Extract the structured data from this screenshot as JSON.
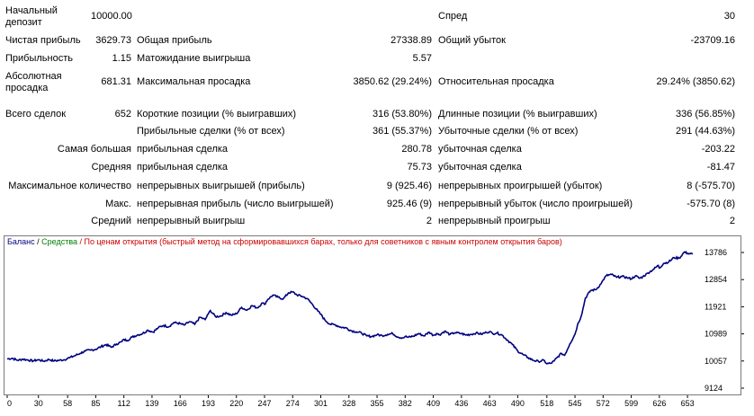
{
  "report": {
    "initial_deposit": {
      "label": "Начальный депозит",
      "value": "10000.00"
    },
    "spread": {
      "label": "Спред",
      "value": "30"
    },
    "net_profit": {
      "label": "Чистая прибыль",
      "value": "3629.73"
    },
    "gross_profit": {
      "label": "Общая прибыль",
      "value": "27338.89"
    },
    "gross_loss": {
      "label": "Общий убыток",
      "value": "-23709.16"
    },
    "profit_factor": {
      "label": "Прибыльность",
      "value": "1.15"
    },
    "expected_payoff": {
      "label": "Матожидание выигрыша",
      "value": "5.57"
    },
    "absolute_drawdown": {
      "label": "Абсолютная просадка",
      "value": "681.31"
    },
    "maximal_drawdown": {
      "label": "Максимальная просадка",
      "value": "3850.62 (29.24%)"
    },
    "relative_drawdown": {
      "label": "Относительная просадка",
      "value": "29.24% (3850.62)"
    },
    "total_trades": {
      "label": "Всего сделок",
      "value": "652"
    },
    "short_positions": {
      "label": "Короткие позиции (% выигравших)",
      "value": "316 (53.80%)"
    },
    "long_positions": {
      "label": "Длинные позиции (% выигравших)",
      "value": "336 (56.85%)"
    },
    "profit_trades": {
      "label": "Прибыльные сделки (% от всех)",
      "value": "361 (55.37%)"
    },
    "loss_trades": {
      "label": "Убыточные сделки (% от всех)",
      "value": "291 (44.63%)"
    },
    "largest": {
      "label": "Самая большая",
      "profit_label": "прибыльная сделка",
      "profit_value": "280.78",
      "loss_label": "убыточная сделка",
      "loss_value": "-203.22"
    },
    "average": {
      "label": "Средняя",
      "profit_label": "прибыльная сделка",
      "profit_value": "75.73",
      "loss_label": "убыточная сделка",
      "loss_value": "-81.47"
    },
    "maximum_consecutive": {
      "label": "Максимальное количество",
      "wins_label": "непрерывных выигрышей (прибыль)",
      "wins_value": "9 (925.46)",
      "losses_label": "непрерывных проигрышей (убыток)",
      "losses_value": "8 (-575.70)"
    },
    "maximal_consecutive": {
      "label": "Макс.",
      "profit_label": "непрерывная прибыль (число выигрышей)",
      "profit_value": "925.46 (9)",
      "loss_label": "непрерывный убыток (число проигрышей)",
      "loss_value": "-575.70 (8)"
    },
    "average_consecutive": {
      "label": "Средний",
      "wins_label": "непрерывный выигрыш",
      "wins_value": "2",
      "losses_label": "непрерывный проигрыш",
      "losses_value": "2"
    }
  },
  "chart_legend": {
    "balance": "Баланс",
    "separator": " / ",
    "equity": "Средства",
    "method": " / По ценам открытия (быстрый метод на сформировавшихся барах, только для советников с явным контролем открытия баров)"
  },
  "colors": {
    "balance": "#000080",
    "equity": "#008000",
    "method": "#cc0000"
  },
  "chart_data": {
    "type": "line",
    "series": [
      {
        "name": "Баланс",
        "x": [
          0,
          5,
          10,
          15,
          20,
          25,
          30,
          35,
          40,
          45,
          50,
          55,
          58,
          60,
          65,
          70,
          75,
          80,
          85,
          90,
          95,
          100,
          105,
          110,
          112,
          115,
          120,
          125,
          130,
          135,
          140,
          145,
          150,
          155,
          160,
          166,
          170,
          175,
          180,
          185,
          190,
          193,
          195,
          200,
          205,
          210,
          215,
          220,
          225,
          230,
          235,
          240,
          245,
          247,
          250,
          255,
          260,
          265,
          270,
          274,
          278,
          283,
          288,
          293,
          298,
          301,
          305,
          310,
          315,
          320,
          325,
          330,
          335,
          340,
          345,
          350,
          355,
          360,
          365,
          370,
          375,
          380,
          382,
          385,
          390,
          395,
          400,
          405,
          409,
          412,
          415,
          420,
          425,
          430,
          436,
          440,
          445,
          450,
          455,
          460,
          463,
          466,
          470,
          475,
          480,
          485,
          490,
          495,
          500,
          505,
          510,
          515,
          518,
          522,
          525,
          528,
          532,
          535,
          540,
          545,
          548,
          551,
          555,
          560,
          565,
          570,
          572,
          575,
          580,
          585,
          590,
          595,
          599,
          603,
          607,
          610,
          615,
          620,
          625,
          626,
          630,
          635,
          640,
          645,
          650,
          653,
          658
        ],
        "y": [
          10130,
          10150,
          10080,
          10120,
          10090,
          10060,
          10100,
          10050,
          10110,
          10060,
          10080,
          10100,
          10150,
          10170,
          10240,
          10320,
          10400,
          10430,
          10460,
          10550,
          10620,
          10530,
          10640,
          10720,
          10800,
          10760,
          10880,
          10950,
          11000,
          11120,
          11050,
          11200,
          11280,
          11230,
          11380,
          11340,
          11290,
          11410,
          11320,
          11560,
          11480,
          11670,
          11790,
          11580,
          11600,
          11720,
          11630,
          11680,
          11900,
          11800,
          11960,
          11880,
          12050,
          12000,
          12170,
          12320,
          12250,
          12190,
          12400,
          12430,
          12330,
          12280,
          12200,
          12000,
          11780,
          11660,
          11460,
          11320,
          11300,
          11220,
          11200,
          11100,
          11060,
          11020,
          10920,
          10900,
          10960,
          10930,
          10970,
          11000,
          10880,
          10850,
          10900,
          10870,
          10910,
          11000,
          10920,
          11050,
          10940,
          11000,
          10960,
          11080,
          10970,
          11030,
          11000,
          10950,
          10970,
          11020,
          10980,
          11040,
          11070,
          11000,
          11020,
          10950,
          10780,
          10620,
          10400,
          10280,
          10170,
          10080,
          10040,
          10080,
          9960,
          9980,
          10060,
          10180,
          10320,
          10250,
          10640,
          10980,
          11360,
          11600,
          12220,
          12480,
          12510,
          12710,
          12840,
          12990,
          13030,
          12930,
          12960,
          12920,
          12880,
          12980,
          12900,
          12950,
          13080,
          13200,
          13340,
          13250,
          13410,
          13460,
          13610,
          13590,
          13800,
          13760,
          13730
        ],
        "ylim": [
          9124,
          13786
        ]
      }
    ],
    "x_ticks": [
      "0",
      "30",
      "58",
      "85",
      "112",
      "139",
      "166",
      "193",
      "220",
      "247",
      "274",
      "301",
      "328",
      "355",
      "382",
      "409",
      "436",
      "463",
      "490",
      "518",
      "545",
      "572",
      "599",
      "626",
      "653"
    ],
    "y_ticks": [
      "13786",
      "12854",
      "11921",
      "10989",
      "10057",
      "9124"
    ],
    "xlim": [
      0,
      665
    ],
    "ylim": [
      9124,
      13786
    ]
  }
}
